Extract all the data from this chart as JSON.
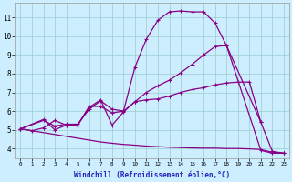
{
  "background_color": "#cceeff",
  "line_color": "#880088",
  "grid_color": "#99cccc",
  "xlabel": "Windchill (Refroidissement éolien,°C)",
  "ylabel_ticks": [
    4,
    5,
    6,
    7,
    8,
    9,
    10,
    11
  ],
  "xlim": [
    -0.5,
    23.5
  ],
  "ylim": [
    3.5,
    11.8
  ],
  "line1_x": [
    0,
    1,
    2,
    3,
    4,
    5,
    6,
    7,
    8,
    9,
    10,
    11,
    12,
    13,
    14,
    15,
    16,
    17,
    18,
    21,
    22,
    23
  ],
  "line1_y": [
    5.05,
    4.95,
    5.1,
    5.5,
    5.25,
    5.25,
    6.25,
    6.25,
    5.9,
    6.0,
    8.35,
    9.85,
    10.85,
    11.3,
    11.35,
    11.3,
    11.3,
    10.7,
    9.5,
    3.9,
    3.75,
    3.75
  ],
  "line2_x": [
    0,
    2,
    3,
    4,
    5,
    6,
    7,
    8,
    9,
    10,
    11,
    12,
    13,
    14,
    15,
    16,
    17,
    18,
    21,
    22,
    23
  ],
  "line2_y": [
    5.05,
    5.55,
    5.0,
    5.25,
    5.25,
    6.2,
    6.6,
    5.25,
    5.95,
    6.5,
    7.0,
    7.35,
    7.65,
    8.05,
    8.5,
    9.0,
    9.45,
    9.5,
    5.4,
    3.85,
    3.75
  ],
  "line3_x": [
    0,
    2,
    3,
    4,
    5,
    6,
    7,
    8,
    9,
    10,
    11,
    12,
    13,
    14,
    15,
    16,
    17,
    18,
    19,
    20,
    21
  ],
  "line3_y": [
    5.05,
    5.5,
    5.2,
    5.3,
    5.3,
    6.1,
    6.55,
    6.1,
    6.0,
    6.5,
    6.6,
    6.65,
    6.8,
    7.0,
    7.15,
    7.25,
    7.4,
    7.5,
    7.55,
    7.55,
    5.4
  ],
  "line4_x": [
    0,
    1,
    2,
    3,
    4,
    5,
    6,
    7,
    8,
    9,
    10,
    11,
    12,
    13,
    14,
    15,
    16,
    17,
    18,
    19,
    20,
    21,
    22,
    23
  ],
  "line4_y": [
    5.05,
    4.95,
    4.85,
    4.75,
    4.65,
    4.55,
    4.45,
    4.35,
    4.28,
    4.22,
    4.18,
    4.13,
    4.1,
    4.07,
    4.05,
    4.03,
    4.02,
    4.02,
    4.0,
    4.0,
    3.98,
    3.95,
    3.8,
    3.75
  ],
  "xticks": [
    0,
    1,
    2,
    3,
    4,
    5,
    6,
    7,
    8,
    9,
    10,
    11,
    12,
    13,
    14,
    15,
    16,
    17,
    18,
    19,
    20,
    21,
    22,
    23
  ]
}
